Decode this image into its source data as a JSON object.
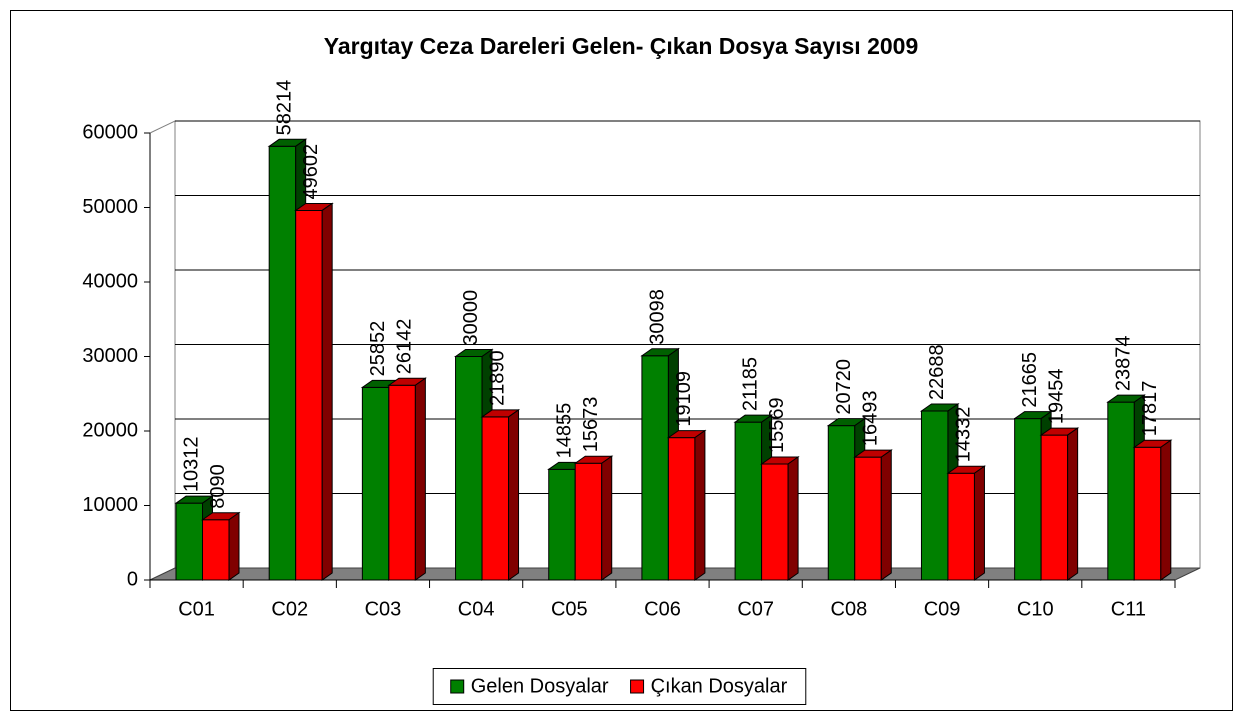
{
  "chart_data": {
    "type": "bar3d",
    "title": "Yargıtay Ceza Dareleri Gelen- Çıkan Dosya Sayısı 2009",
    "categories": [
      "C01",
      "C02",
      "C03",
      "C04",
      "C05",
      "C06",
      "C07",
      "C08",
      "C09",
      "C10",
      "C11"
    ],
    "series": [
      {
        "name": "Gelen Dosyalar",
        "color": "#008000",
        "values": [
          10312,
          58214,
          25852,
          30000,
          14855,
          30098,
          21185,
          20720,
          22688,
          21665,
          23874
        ]
      },
      {
        "name": "Çıkan Dosyalar",
        "color": "#ff0000",
        "values": [
          8090,
          49602,
          26142,
          21890,
          15673,
          19109,
          15569,
          16493,
          14332,
          19454,
          17817
        ]
      }
    ],
    "ylim": [
      0,
      60000
    ],
    "yticks": [
      0,
      10000,
      20000,
      30000,
      40000,
      50000,
      60000
    ],
    "grid": true,
    "legend": "bottom"
  }
}
